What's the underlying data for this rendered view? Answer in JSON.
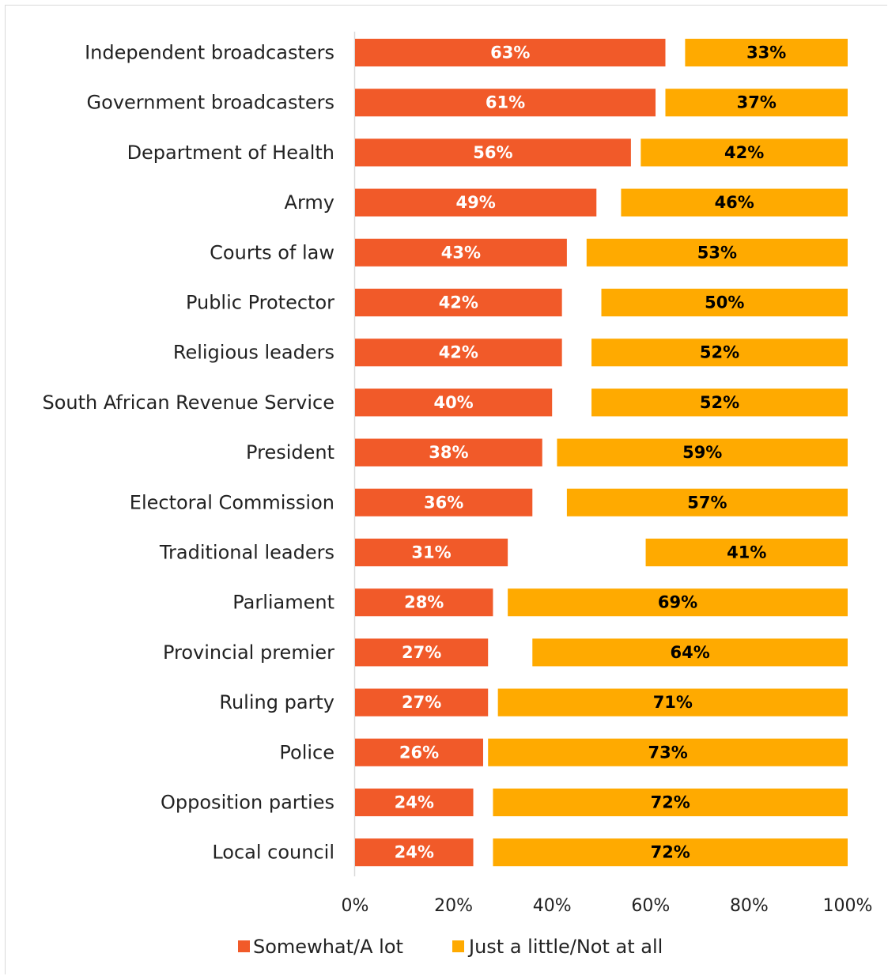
{
  "chart_data": {
    "type": "bar",
    "orientation": "horizontal",
    "stacked": true,
    "categories": [
      "Independent broadcasters",
      "Government broadcasters",
      "Department of Health",
      "Army",
      "Courts of law",
      "Public Protector",
      "Religious leaders",
      "South African Revenue Service",
      "President",
      "Electoral Commission",
      "Traditional leaders",
      "Parliament",
      "Provincial premier",
      "Ruling party",
      "Police",
      "Opposition parties",
      "Local council"
    ],
    "series": [
      {
        "name": "Somewhat/A lot",
        "color": "#f15a29",
        "values": [
          63,
          61,
          56,
          49,
          43,
          42,
          42,
          40,
          38,
          36,
          31,
          28,
          27,
          27,
          26,
          24,
          24
        ],
        "labels": [
          "63%",
          "61%",
          "56%",
          "49%",
          "43%",
          "42%",
          "42%",
          "40%",
          "38%",
          "36%",
          "31%",
          "28%",
          "27%",
          "27%",
          "26%",
          "24%",
          "24%"
        ]
      },
      {
        "name": "Just a little/Not at all",
        "color": "#ffaa00",
        "values": [
          33,
          37,
          42,
          46,
          53,
          50,
          52,
          52,
          59,
          57,
          41,
          69,
          64,
          71,
          73,
          72,
          72
        ],
        "labels": [
          "33%",
          "37%",
          "42%",
          "46%",
          "53%",
          "50%",
          "52%",
          "52%",
          "59%",
          "57%",
          "41%",
          "69%",
          "64%",
          "71%",
          "73%",
          "72%",
          "72%"
        ]
      }
    ],
    "xlim": [
      0,
      100
    ],
    "x_ticks": [
      "0%",
      "20%",
      "40%",
      "60%",
      "80%",
      "100%"
    ],
    "grid": false,
    "legend_position": "bottom"
  }
}
